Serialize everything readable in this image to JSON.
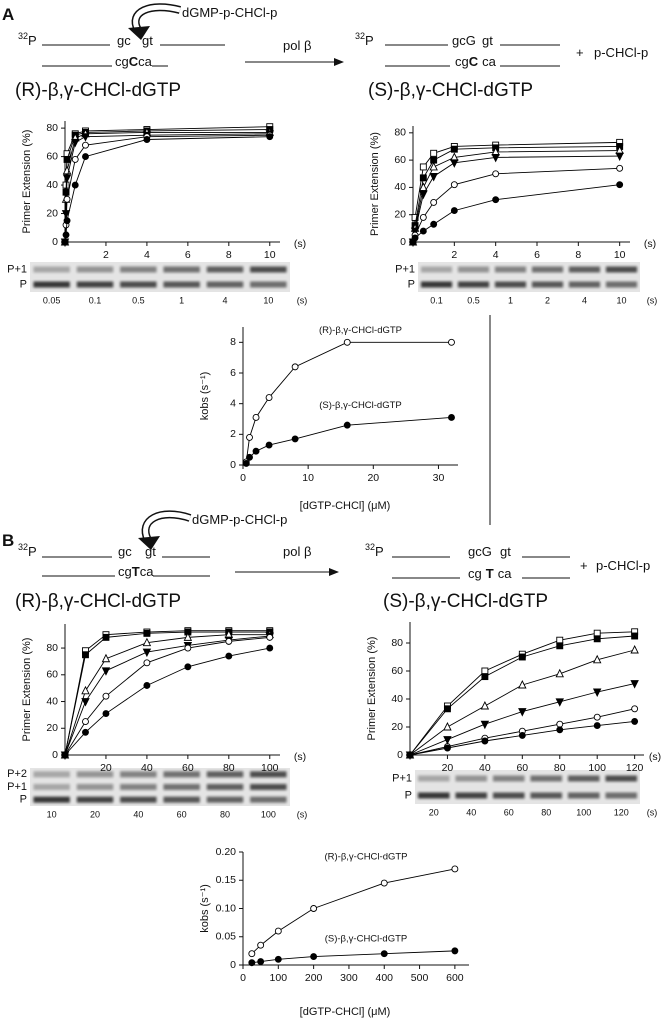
{
  "panels": [
    {
      "label": "A",
      "scheme": {
        "isotope": "32",
        "label": "P",
        "top": [
          "gc",
          "gt"
        ],
        "bottom": [
          "cg",
          "C",
          "ca"
        ],
        "incoming": "dGMP-p-CHCl-p",
        "enzyme": "pol β",
        "product_isotope": "32",
        "product_label": "P",
        "product_top": [
          "gcG",
          "gt"
        ],
        "product_bottom": [
          "cg",
          "C",
          "ca"
        ],
        "plus": "+",
        "leaving": "p-CHCl-p"
      },
      "gels": [
        {
          "bands": [
            "P+1",
            "P"
          ],
          "lanes": [
            0.05,
            0.1,
            0.5,
            1,
            4,
            10
          ],
          "unit": "(s)"
        },
        {
          "bands": [
            "P+1",
            "P"
          ],
          "lanes": [
            0.1,
            0.5,
            1,
            2,
            4,
            10
          ],
          "unit": "(s)"
        }
      ]
    },
    {
      "label": "B",
      "scheme": {
        "isotope": "32",
        "label": "P",
        "top": [
          "gc",
          "gt"
        ],
        "bottom": [
          "cg",
          "T",
          "ca"
        ],
        "incoming": "dGMP-p-CHCl-p",
        "enzyme": "pol β",
        "product_isotope": "32",
        "product_label": "P",
        "product_top": [
          "gcG",
          "gt"
        ],
        "product_bottom": [
          "cg",
          "T",
          "ca"
        ],
        "plus": "+",
        "leaving": "p-CHCl-p"
      },
      "gels": [
        {
          "bands": [
            "P+2",
            "P+1",
            "P"
          ],
          "lanes": [
            10,
            20,
            40,
            60,
            80,
            100
          ],
          "unit": "(s)"
        },
        {
          "bands": [
            "P+1",
            "P"
          ],
          "lanes": [
            20,
            40,
            60,
            80,
            100,
            120
          ],
          "unit": "(s)"
        }
      ]
    }
  ],
  "chart_data": [
    {
      "type": "line",
      "title": "(R)-β,γ-CHCl-dGTP",
      "ylabel": "Primer Extension (%)",
      "xlabel": "(s)",
      "color": "#000000",
      "x": [
        0,
        0.05,
        0.1,
        0.5,
        1,
        4,
        10
      ],
      "xlim": [
        0,
        10.5
      ],
      "xticks": [
        2,
        4,
        6,
        8,
        10
      ],
      "ylim": [
        0,
        85
      ],
      "yticks": [
        0,
        20,
        40,
        60,
        80
      ],
      "series": [
        {
          "marker": "square-open",
          "values": [
            0,
            40,
            62,
            76,
            78,
            79,
            81
          ]
        },
        {
          "marker": "square",
          "values": [
            0,
            35,
            58,
            75,
            77,
            78,
            79
          ]
        },
        {
          "marker": "triangle-open",
          "values": [
            0,
            30,
            50,
            73,
            76,
            77,
            77
          ]
        },
        {
          "marker": "triangle-down",
          "values": [
            0,
            20,
            45,
            70,
            74,
            75,
            76
          ]
        },
        {
          "marker": "circle-open",
          "values": [
            0,
            12,
            30,
            58,
            68,
            74,
            75
          ]
        },
        {
          "marker": "circle",
          "values": [
            0,
            5,
            15,
            40,
            60,
            72,
            74
          ]
        }
      ]
    },
    {
      "type": "line",
      "title": "(S)-β,γ-CHCl-dGTP",
      "ylabel": "Primer Extension (%)",
      "xlabel": "(s)",
      "color": "#000000",
      "x": [
        0,
        0.1,
        0.5,
        1,
        2,
        4,
        10
      ],
      "xlim": [
        0,
        10.5
      ],
      "xticks": [
        2,
        4,
        6,
        8,
        10
      ],
      "ylim": [
        0,
        85
      ],
      "yticks": [
        0,
        20,
        40,
        60,
        80
      ],
      "series": [
        {
          "marker": "square-open",
          "values": [
            0,
            18,
            55,
            65,
            70,
            71,
            73
          ]
        },
        {
          "marker": "square",
          "values": [
            0,
            12,
            47,
            60,
            68,
            69,
            70
          ]
        },
        {
          "marker": "triangle-open",
          "values": [
            0,
            10,
            40,
            55,
            62,
            66,
            67
          ]
        },
        {
          "marker": "triangle-down",
          "values": [
            0,
            8,
            35,
            48,
            58,
            62,
            63
          ]
        },
        {
          "marker": "circle-open",
          "values": [
            0,
            5,
            18,
            29,
            42,
            50,
            54
          ]
        },
        {
          "marker": "circle",
          "values": [
            0,
            3,
            8,
            13,
            23,
            31,
            42
          ]
        }
      ]
    },
    {
      "type": "line",
      "ylabel": "kobs (s⁻¹)",
      "xlabel": "[dGTP-CHCl] (μM)",
      "color": "#000000",
      "xlim": [
        0,
        33
      ],
      "xticks": [
        0,
        10,
        20,
        30
      ],
      "ylim": [
        0,
        9
      ],
      "yticks": [
        0,
        2,
        4,
        6,
        8
      ],
      "series": [
        {
          "name": "(R)-β,γ-CHCl-dGTP",
          "marker": "circle-open",
          "x": [
            0.5,
            1,
            2,
            4,
            8,
            16,
            32
          ],
          "values": [
            0.2,
            1.8,
            3.1,
            4.4,
            6.4,
            8.0,
            8.0
          ]
        },
        {
          "name": "(S)-β,γ-CHCl-dGTP",
          "marker": "circle",
          "x": [
            0.5,
            1,
            2,
            4,
            8,
            16,
            32
          ],
          "values": [
            0.1,
            0.5,
            0.9,
            1.3,
            1.7,
            2.6,
            3.1
          ]
        }
      ]
    },
    {
      "type": "line",
      "title": "(R)-β,γ-CHCl-dGTP",
      "ylabel": "Primer Extension (%)",
      "xlabel": "(s)",
      "color": "#000000",
      "x": [
        0,
        10,
        20,
        40,
        60,
        80,
        100
      ],
      "xlim": [
        0,
        105
      ],
      "xticks": [
        20,
        40,
        60,
        80,
        100
      ],
      "ylim": [
        0,
        98
      ],
      "yticks": [
        0,
        20,
        40,
        60,
        80
      ],
      "series": [
        {
          "marker": "square-open",
          "values": [
            0,
            78,
            90,
            92,
            93,
            93,
            93
          ]
        },
        {
          "marker": "square",
          "values": [
            0,
            75,
            88,
            91,
            92,
            92,
            92
          ]
        },
        {
          "marker": "triangle-open",
          "values": [
            0,
            48,
            72,
            84,
            88,
            90,
            90
          ]
        },
        {
          "marker": "triangle-down",
          "values": [
            0,
            40,
            63,
            77,
            82,
            86,
            89
          ]
        },
        {
          "marker": "circle-open",
          "values": [
            0,
            25,
            44,
            69,
            80,
            85,
            88
          ]
        },
        {
          "marker": "circle",
          "values": [
            0,
            17,
            31,
            52,
            66,
            74,
            80
          ]
        }
      ]
    },
    {
      "type": "line",
      "title": "(S)-β,γ-CHCl-dGTP",
      "ylabel": "Primer Extension (%)",
      "xlabel": "(s)",
      "color": "#000000",
      "x": [
        0,
        20,
        40,
        60,
        80,
        100,
        120
      ],
      "xlim": [
        0,
        125
      ],
      "xticks": [
        20,
        40,
        60,
        80,
        100,
        120
      ],
      "ylim": [
        0,
        95
      ],
      "yticks": [
        0,
        20,
        40,
        60,
        80
      ],
      "series": [
        {
          "marker": "square-open",
          "values": [
            0,
            35,
            60,
            72,
            82,
            87,
            88
          ]
        },
        {
          "marker": "square",
          "values": [
            0,
            33,
            56,
            70,
            78,
            83,
            85
          ]
        },
        {
          "marker": "triangle-open",
          "values": [
            0,
            20,
            35,
            50,
            58,
            68,
            75
          ]
        },
        {
          "marker": "triangle-down",
          "values": [
            0,
            11,
            22,
            31,
            38,
            45,
            51
          ]
        },
        {
          "marker": "circle-open",
          "values": [
            0,
            6,
            12,
            17,
            22,
            27,
            33
          ]
        },
        {
          "marker": "circle",
          "values": [
            0,
            5,
            10,
            14,
            18,
            21,
            24
          ]
        }
      ]
    },
    {
      "type": "line",
      "ylabel": "kobs (s⁻¹)",
      "xlabel": "[dGTP-CHCl] (μM)",
      "color": "#000000",
      "xlim": [
        0,
        640
      ],
      "xticks": [
        0,
        100,
        200,
        300,
        400,
        500,
        600
      ],
      "ylim": [
        0,
        0.2
      ],
      "yticks": [
        0,
        {
          "value": 0.05,
          "label": "0.05"
        },
        {
          "value": 0.1,
          "label": "0.10"
        },
        {
          "value": 0.15,
          "label": "0.15"
        },
        {
          "value": 0.2,
          "label": "0.20"
        }
      ],
      "series": [
        {
          "name": "(R)-β,γ-CHCl-dGTP",
          "marker": "circle-open",
          "x": [
            25,
            50,
            100,
            200,
            400,
            600
          ],
          "values": [
            0.02,
            0.035,
            0.06,
            0.1,
            0.145,
            0.17
          ]
        },
        {
          "name": "(S)-β,γ-CHCl-dGTP",
          "marker": "circle",
          "x": [
            25,
            50,
            100,
            200,
            400,
            600
          ],
          "values": [
            0.004,
            0.006,
            0.01,
            0.015,
            0.02,
            0.025
          ]
        }
      ]
    }
  ]
}
